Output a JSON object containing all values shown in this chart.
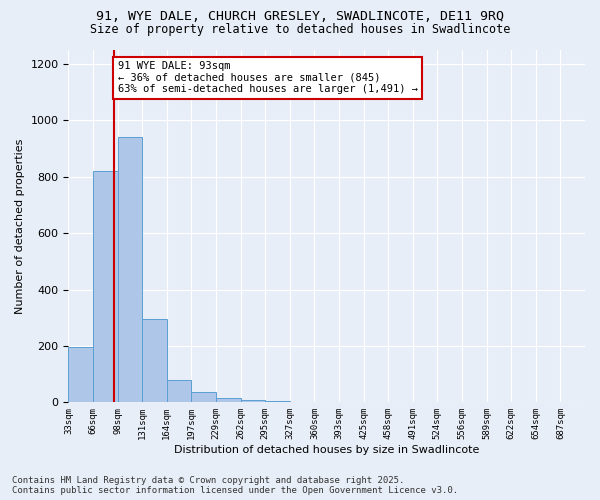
{
  "title_line1": "91, WYE DALE, CHURCH GRESLEY, SWADLINCOTE, DE11 9RQ",
  "title_line2": "Size of property relative to detached houses in Swadlincote",
  "xlabel": "Distribution of detached houses by size in Swadlincote",
  "ylabel": "Number of detached properties",
  "bin_labels": [
    "33sqm",
    "66sqm",
    "98sqm",
    "131sqm",
    "164sqm",
    "197sqm",
    "229sqm",
    "262sqm",
    "295sqm",
    "327sqm",
    "360sqm",
    "393sqm",
    "425sqm",
    "458sqm",
    "491sqm",
    "524sqm",
    "556sqm",
    "589sqm",
    "622sqm",
    "654sqm",
    "687sqm"
  ],
  "bar_heights": [
    195,
    820,
    940,
    295,
    80,
    35,
    15,
    10,
    5,
    2,
    1,
    0,
    0,
    0,
    0,
    0,
    0,
    0,
    0,
    0,
    0
  ],
  "bar_color": "#aec6e8",
  "bar_edge_color": "#5a9fd4",
  "vline_index": 1.85,
  "vline_color": "#cc0000",
  "annotation_text": "91 WYE DALE: 93sqm\n← 36% of detached houses are smaller (845)\n63% of semi-detached houses are larger (1,491) →",
  "annotation_box_color": "#ffffff",
  "annotation_box_edge": "#cc0000",
  "ylim": [
    0,
    1250
  ],
  "yticks": [
    0,
    200,
    400,
    600,
    800,
    1000,
    1200
  ],
  "bg_color": "#e8eef7",
  "plot_bg_color": "#e8eef7",
  "footer_line1": "Contains HM Land Registry data © Crown copyright and database right 2025.",
  "footer_line2": "Contains public sector information licensed under the Open Government Licence v3.0.",
  "title_fontsize": 9.5,
  "subtitle_fontsize": 8.5,
  "annotation_fontsize": 7.5,
  "footer_fontsize": 6.5,
  "ylabel_fontsize": 8,
  "xlabel_fontsize": 8
}
